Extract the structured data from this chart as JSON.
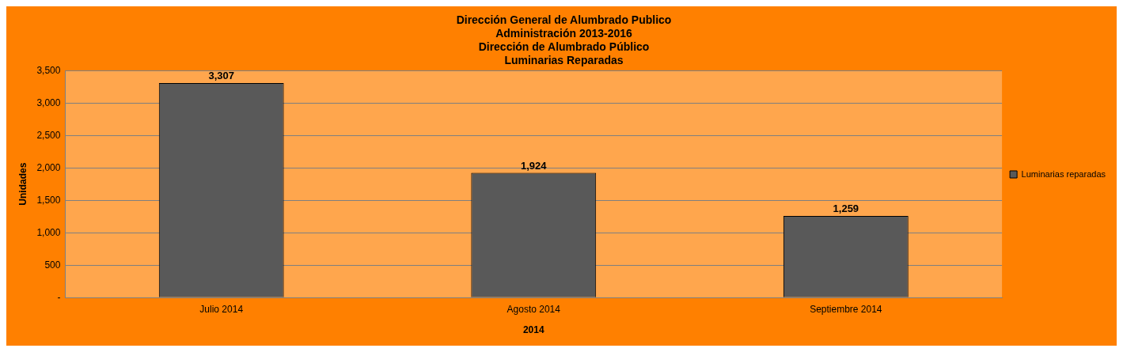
{
  "chart_data": {
    "type": "bar",
    "title": "Dirección General de Alumbrado Publico\nAdministración 2013-2016\nDirección de Alumbrado Público\nLuminarias Reparadas",
    "xlabel": "2014",
    "ylabel": "Unidades",
    "categories": [
      "Julio 2014",
      "Agosto 2014",
      "Septiembre 2014"
    ],
    "series": [
      {
        "name": "Luminarias reparadas",
        "color": "#595959",
        "values": [
          3307,
          1924,
          1259
        ],
        "value_labels": [
          "3,307",
          "1,924",
          "1,259"
        ]
      }
    ],
    "ylim": [
      0,
      3500
    ],
    "yticks": [
      {
        "value": 0,
        "label": "-"
      },
      500,
      {
        "value": 1000,
        "label": "1,000"
      },
      {
        "value": 1500,
        "label": "1,500"
      },
      {
        "value": 2000,
        "label": "2,000"
      },
      {
        "value": 2500,
        "label": "2,500"
      },
      {
        "value": 3000,
        "label": "3,000"
      },
      {
        "value": 3500,
        "label": "3,500"
      }
    ],
    "grid": "y",
    "legend": "right"
  }
}
